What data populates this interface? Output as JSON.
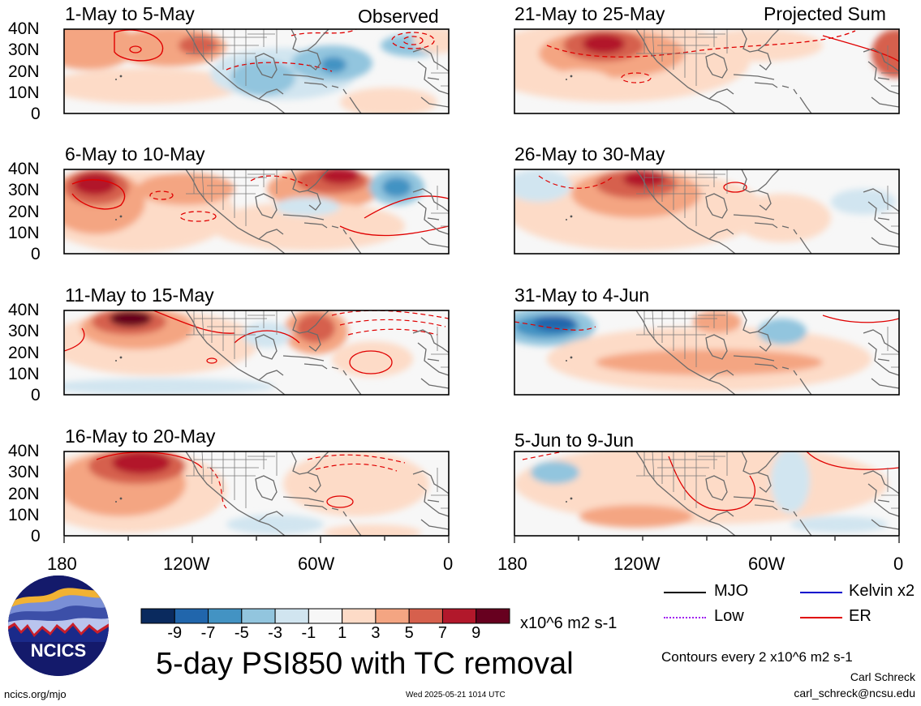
{
  "panels": {
    "left": [
      {
        "title": "1-May to 5-May",
        "tag": "Observed"
      },
      {
        "title": "6-May to 10-May"
      },
      {
        "title": "11-May to 15-May"
      },
      {
        "title": "16-May to 20-May"
      }
    ],
    "right": [
      {
        "title": "21-May to 25-May",
        "tag": "Projected Sum"
      },
      {
        "title": "26-May to 30-May"
      },
      {
        "title": "31-May to 4-Jun"
      },
      {
        "title": "5-Jun to 9-Jun"
      }
    ]
  },
  "axes": {
    "lat_labels": [
      "40N",
      "30N",
      "20N",
      "10N",
      "0"
    ],
    "lon_labels": [
      "180",
      "120W",
      "60W",
      "0"
    ]
  },
  "colorbar": {
    "ticks": [
      "-9",
      "-7",
      "-5",
      "-3",
      "-1",
      "1",
      "3",
      "5",
      "7",
      "9"
    ],
    "colors": [
      "#0a2a5e",
      "#2166ac",
      "#4393c3",
      "#92c5de",
      "#d1e5f0",
      "#f7f7f7",
      "#fddbc7",
      "#f4a582",
      "#d6604d",
      "#b2182b",
      "#67001f"
    ],
    "units": "x10^6 m2 s-1"
  },
  "legend": {
    "items": [
      {
        "label": "MJO",
        "color": "#000000"
      },
      {
        "label": "Kelvin x2",
        "color": "#0000cc"
      },
      {
        "label": "Low",
        "color": "#a020f0"
      },
      {
        "label": "ER",
        "color": "#e00000"
      }
    ],
    "contour_note": "Contours every 2 x10^6 m2 s-1"
  },
  "logo": {
    "text": "NCICS"
  },
  "main_title": "5-day PSI850 with TC removal",
  "footer": {
    "url": "ncics.org/mjo",
    "timestamp": "Wed 2025-05-21 1014 UTC",
    "author": "Carl Schreck",
    "email": "carl_schreck@ncsu.edu"
  }
}
